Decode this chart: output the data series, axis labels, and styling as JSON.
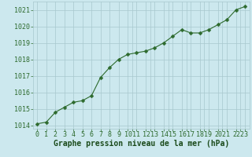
{
  "x": [
    0,
    1,
    2,
    3,
    4,
    5,
    6,
    7,
    8,
    9,
    10,
    11,
    12,
    13,
    14,
    15,
    16,
    17,
    18,
    19,
    20,
    21,
    22,
    23
  ],
  "y": [
    1014.1,
    1014.2,
    1014.8,
    1015.1,
    1015.4,
    1015.5,
    1015.8,
    1016.9,
    1017.5,
    1018.0,
    1018.3,
    1018.4,
    1018.5,
    1018.7,
    1019.0,
    1019.4,
    1019.8,
    1019.6,
    1019.6,
    1019.8,
    1020.1,
    1020.4,
    1021.0,
    1021.2
  ],
  "ylim": [
    1013.8,
    1021.5
  ],
  "yticks": [
    1014,
    1015,
    1016,
    1017,
    1018,
    1019,
    1020,
    1021
  ],
  "xlim": [
    -0.5,
    23.5
  ],
  "xtick_labels": [
    "0",
    "1",
    "2",
    "3",
    "4",
    "5",
    "6",
    "7",
    "8",
    "9",
    "1011",
    "1213",
    "1415",
    "1617",
    "1819",
    "2021",
    "2223"
  ],
  "xtick_pos": [
    0,
    1,
    2,
    3,
    4,
    5,
    6,
    7,
    8,
    9,
    10.5,
    12.5,
    14.5,
    16.5,
    18.5,
    20.5,
    22.5
  ],
  "line_color": "#2d6a2d",
  "marker": "D",
  "marker_size": 2.5,
  "line_width": 0.8,
  "bg_color": "#cce8ee",
  "grid_color": "#a8c8ce",
  "xlabel": "Graphe pression niveau de la mer (hPa)",
  "xlabel_color": "#1a4a1a",
  "xlabel_fontsize": 7,
  "tick_fontsize": 6,
  "tick_color": "#2d6a2d",
  "ytick_labels": [
    "1014",
    "1015",
    "1016",
    "1017",
    "1018",
    "1019",
    "1020",
    "1021"
  ]
}
